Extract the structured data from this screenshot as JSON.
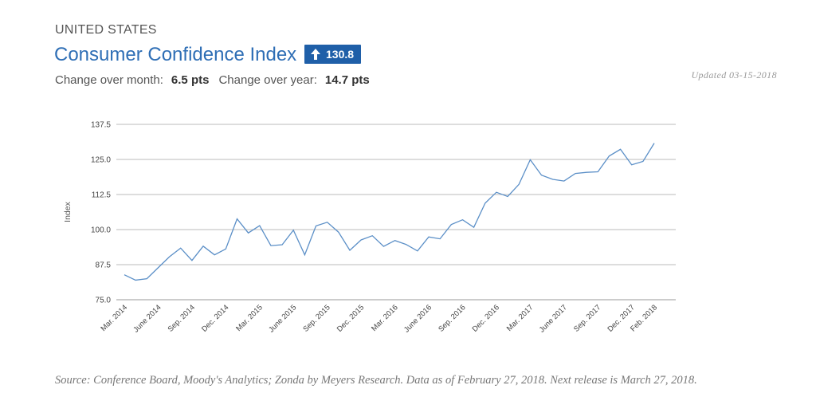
{
  "header": {
    "region": "UNITED STATES",
    "title": "Consumer Confidence Index",
    "badge_value": "130.8",
    "change_month_label": "Change over month:",
    "change_month_value": "6.5 pts",
    "change_year_label": "Change over year:",
    "change_year_value": "14.7 pts",
    "updated": "Updated 03-15-2018"
  },
  "footer": {
    "source": "Source: Conference Board, Moody's Analytics; Zonda by Meyers Research. Data as of February 27, 2018. Next release is March 27, 2018."
  },
  "colors": {
    "line": "#5b8fc7",
    "title": "#2e6eb5",
    "badge": "#1f5fa8",
    "grid": "#bbbbbb"
  },
  "chart_data": {
    "type": "line",
    "title": "",
    "xlabel": "",
    "ylabel": "Index",
    "ylim": [
      75,
      137.5
    ],
    "yticks": [
      "137.5",
      "125.0",
      "112.5",
      "100.0",
      "87.5",
      "75.0"
    ],
    "grid": true,
    "x_ticks": [
      {
        "label": "Mar. 2014",
        "index": 0
      },
      {
        "label": "June 2014",
        "index": 3
      },
      {
        "label": "Sep. 2014",
        "index": 6
      },
      {
        "label": "Dec. 2014",
        "index": 9
      },
      {
        "label": "Mar. 2015",
        "index": 12
      },
      {
        "label": "June 2015",
        "index": 15
      },
      {
        "label": "Sep. 2015",
        "index": 18
      },
      {
        "label": "Dec. 2015",
        "index": 21
      },
      {
        "label": "Mar. 2016",
        "index": 24
      },
      {
        "label": "June 2016",
        "index": 27
      },
      {
        "label": "Sep. 2016",
        "index": 30
      },
      {
        "label": "Dec. 2016",
        "index": 33
      },
      {
        "label": "Mar. 2017",
        "index": 36
      },
      {
        "label": "June 2017",
        "index": 39
      },
      {
        "label": "Sep. 2017",
        "index": 42
      },
      {
        "label": "Dec. 2017",
        "index": 45
      },
      {
        "label": "Feb. 2018",
        "index": 47
      }
    ],
    "series": [
      {
        "x": [
          "2014-03",
          "2014-04",
          "2014-05",
          "2014-06",
          "2014-07",
          "2014-08",
          "2014-09",
          "2014-10",
          "2014-11",
          "2014-12",
          "2015-01",
          "2015-02",
          "2015-03",
          "2015-04",
          "2015-05",
          "2015-06",
          "2015-07",
          "2015-08",
          "2015-09",
          "2015-10",
          "2015-11",
          "2015-12",
          "2016-01",
          "2016-02",
          "2016-03",
          "2016-04",
          "2016-05",
          "2016-06",
          "2016-07",
          "2016-08",
          "2016-09",
          "2016-10",
          "2016-11",
          "2016-12",
          "2017-01",
          "2017-02",
          "2017-03",
          "2017-04",
          "2017-05",
          "2017-06",
          "2017-07",
          "2017-08",
          "2017-09",
          "2017-10",
          "2017-11",
          "2017-12",
          "2018-01",
          "2018-02"
        ],
        "values": [
          83.9,
          82.0,
          82.5,
          86.4,
          90.3,
          93.4,
          89.0,
          94.1,
          91.0,
          93.1,
          103.8,
          98.8,
          101.4,
          94.3,
          94.6,
          99.8,
          91.0,
          101.3,
          102.6,
          99.1,
          92.6,
          96.3,
          97.8,
          94.0,
          96.1,
          94.7,
          92.4,
          97.4,
          96.7,
          101.8,
          103.5,
          100.8,
          109.4,
          113.3,
          111.8,
          116.1,
          124.9,
          119.4,
          117.9,
          117.3,
          120.0,
          120.4,
          120.6,
          126.2,
          128.6,
          123.1,
          124.3,
          130.8
        ]
      }
    ]
  }
}
